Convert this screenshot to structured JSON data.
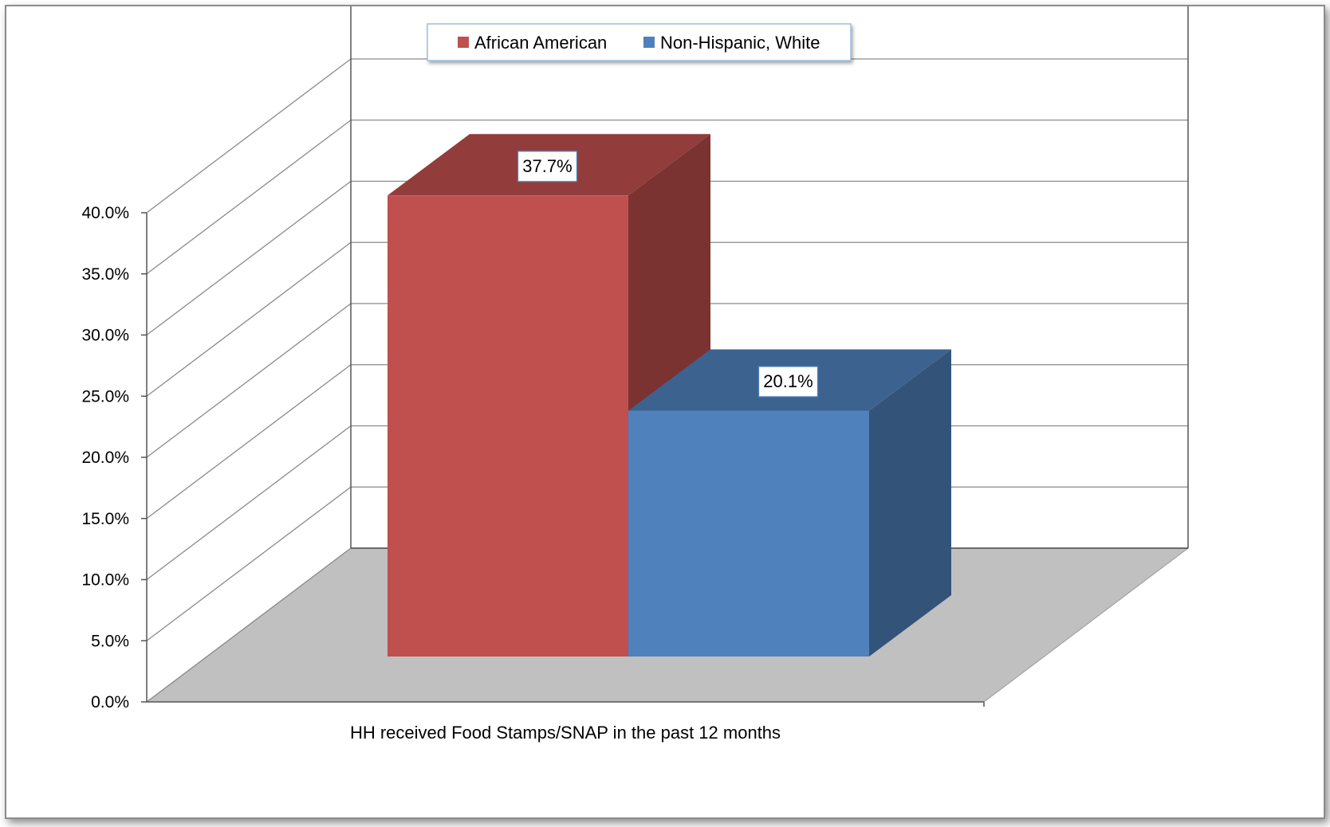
{
  "chart_data": {
    "type": "bar",
    "style": "3d-clustered-column",
    "categories": [
      "HH received Food Stamps/SNAP in the past 12 months"
    ],
    "series": [
      {
        "name": "African American",
        "values": [
          37.7
        ],
        "color": "#C0504D",
        "label": "37.7%"
      },
      {
        "name": "Non-Hispanic, White",
        "values": [
          20.1
        ],
        "color": "#4F81BD",
        "label": "20.1%"
      }
    ],
    "ylim": [
      0,
      40
    ],
    "yticks": [
      "0.0%",
      "5.0%",
      "10.0%",
      "15.0%",
      "20.0%",
      "25.0%",
      "30.0%",
      "35.0%",
      "40.0%"
    ],
    "ytick_values": [
      0,
      5,
      10,
      15,
      20,
      25,
      30,
      35,
      40
    ],
    "grid": true,
    "legend_position": "top-center",
    "floor_color": "#C0C0C0"
  }
}
